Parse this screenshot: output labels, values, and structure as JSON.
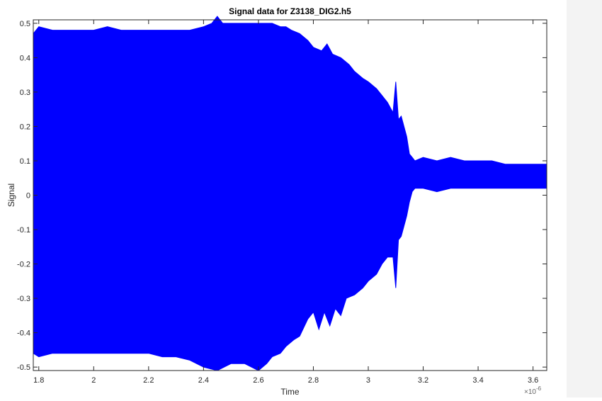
{
  "window": {
    "background_color": "#ffffff"
  },
  "chart_data": {
    "type": "line",
    "title": "Signal data for Z3138_DIG2.h5",
    "xlabel": "Time",
    "ylabel": "Signal",
    "x_exponent_label": "×10",
    "x_exponent_power": "-6",
    "xlim": [
      1.78,
      3.65
    ],
    "ylim": [
      -0.51,
      0.51
    ],
    "xticks": [
      1.8,
      2,
      2.2,
      2.4,
      2.6,
      2.8,
      3,
      3.2,
      3.4,
      3.6
    ],
    "xtick_labels": [
      "1.8",
      "2",
      "2.2",
      "2.4",
      "2.6",
      "2.8",
      "3",
      "3.2",
      "3.4",
      "3.6"
    ],
    "yticks": [
      -0.5,
      -0.4,
      -0.3,
      -0.2,
      -0.1,
      0,
      0.1,
      0.2,
      0.3,
      0.4,
      0.5
    ],
    "ytick_labels": [
      "-0.5",
      "-0.4",
      "-0.3",
      "-0.2",
      "-0.1",
      "0",
      "0.1",
      "0.2",
      "0.3",
      "0.4",
      "0.5"
    ],
    "grid": false,
    "series": [
      {
        "color": "#0000ff",
        "upper_envelope": {
          "x": [
            1.78,
            1.8,
            1.85,
            1.9,
            1.95,
            2.0,
            2.05,
            2.1,
            2.15,
            2.2,
            2.25,
            2.3,
            2.35,
            2.4,
            2.43,
            2.45,
            2.47,
            2.5,
            2.55,
            2.6,
            2.63,
            2.65,
            2.68,
            2.7,
            2.72,
            2.75,
            2.78,
            2.8,
            2.83,
            2.85,
            2.87,
            2.9,
            2.93,
            2.95,
            2.98,
            3.0,
            3.03,
            3.05,
            3.07,
            3.09,
            3.1,
            3.11,
            3.12,
            3.14,
            3.15,
            3.16,
            3.17,
            3.2,
            3.25,
            3.3,
            3.35,
            3.4,
            3.45,
            3.5,
            3.55,
            3.6,
            3.65
          ],
          "y": [
            0.47,
            0.49,
            0.48,
            0.48,
            0.48,
            0.48,
            0.49,
            0.48,
            0.48,
            0.48,
            0.48,
            0.48,
            0.48,
            0.49,
            0.5,
            0.52,
            0.5,
            0.5,
            0.5,
            0.5,
            0.5,
            0.5,
            0.49,
            0.49,
            0.48,
            0.47,
            0.45,
            0.43,
            0.42,
            0.44,
            0.41,
            0.4,
            0.38,
            0.36,
            0.34,
            0.33,
            0.31,
            0.29,
            0.27,
            0.24,
            0.33,
            0.22,
            0.23,
            0.17,
            0.12,
            0.11,
            0.1,
            0.11,
            0.1,
            0.11,
            0.1,
            0.1,
            0.1,
            0.09,
            0.09,
            0.09,
            0.09
          ]
        },
        "lower_envelope": {
          "x": [
            1.78,
            1.8,
            1.85,
            1.9,
            1.95,
            2.0,
            2.05,
            2.1,
            2.15,
            2.2,
            2.25,
            2.3,
            2.35,
            2.4,
            2.45,
            2.5,
            2.55,
            2.6,
            2.63,
            2.65,
            2.68,
            2.7,
            2.73,
            2.75,
            2.78,
            2.8,
            2.82,
            2.84,
            2.86,
            2.88,
            2.9,
            2.92,
            2.95,
            2.98,
            3.0,
            3.03,
            3.05,
            3.07,
            3.09,
            3.1,
            3.11,
            3.12,
            3.14,
            3.15,
            3.16,
            3.17,
            3.2,
            3.25,
            3.3,
            3.35,
            3.4,
            3.45,
            3.5,
            3.55,
            3.6,
            3.65
          ],
          "y": [
            -0.46,
            -0.47,
            -0.46,
            -0.46,
            -0.46,
            -0.46,
            -0.46,
            -0.46,
            -0.46,
            -0.46,
            -0.47,
            -0.47,
            -0.48,
            -0.5,
            -0.51,
            -0.49,
            -0.49,
            -0.51,
            -0.49,
            -0.47,
            -0.46,
            -0.44,
            -0.42,
            -0.41,
            -0.36,
            -0.34,
            -0.39,
            -0.34,
            -0.38,
            -0.33,
            -0.35,
            -0.3,
            -0.29,
            -0.27,
            -0.25,
            -0.23,
            -0.2,
            -0.18,
            -0.18,
            -0.27,
            -0.13,
            -0.12,
            -0.06,
            -0.02,
            0.01,
            0.02,
            0.02,
            0.01,
            0.02,
            0.02,
            0.02,
            0.02,
            0.02,
            0.02,
            0.02,
            0.02
          ]
        }
      }
    ]
  }
}
